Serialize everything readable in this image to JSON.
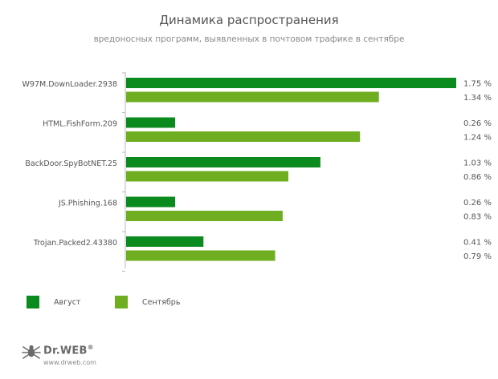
{
  "chart_data": {
    "type": "bar",
    "orientation": "horizontal",
    "title": "Динамика распространения",
    "subtitle": "вредоносных программ, выявленных в почтовом трафике в сентябре",
    "categories": [
      "W97M.DownLoader.2938",
      "HTML.FishForm.209",
      "BackDoor.SpyBotNET.25",
      "JS.Phishing.168",
      "Trojan.Packed2.43380"
    ],
    "series": [
      {
        "name": "Август",
        "color": "#0b8a1e",
        "values": [
          1.75,
          0.26,
          1.03,
          0.26,
          0.41
        ],
        "labels": [
          "1.75 %",
          "0.26 %",
          "1.03 %",
          "0.26 %",
          "0.41 %"
        ]
      },
      {
        "name": "Сентябрь",
        "color": "#6fae20",
        "values": [
          1.34,
          1.24,
          0.86,
          0.83,
          0.79
        ],
        "labels": [
          "1.34 %",
          "1.24 %",
          "0.86 %",
          "0.83 %",
          "0.79 %"
        ]
      }
    ],
    "xlim": [
      0,
      1.75
    ],
    "grid": false,
    "legend": "bottom-left"
  },
  "branding": {
    "name": "Dr.WEB",
    "mark": "®",
    "url": "www.drweb.com"
  },
  "colors": {
    "axis": "#b8b8b8"
  }
}
